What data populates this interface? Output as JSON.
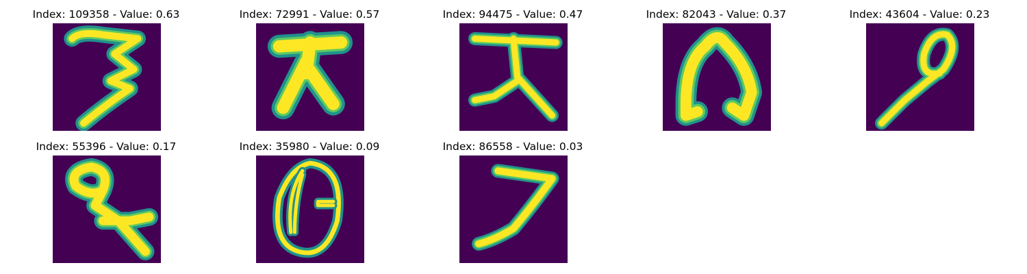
{
  "colors": {
    "background": "#440154",
    "stroke_edge": "#21918c",
    "stroke_mid": "#5ec962",
    "stroke_core": "#fde725"
  },
  "panels": [
    {
      "title": "Index: 109358 - Value: 0.63",
      "glyph_icon": "handwritten-three-glyph"
    },
    {
      "title": "Index: 72991 - Value: 0.57",
      "glyph_icon": "handwritten-da-glyph"
    },
    {
      "title": "Index: 94475 - Value: 0.47",
      "glyph_icon": "handwritten-da-glyph"
    },
    {
      "title": "Index: 82043 - Value: 0.37",
      "glyph_icon": "handwritten-arch-glyph"
    },
    {
      "title": "Index: 43604 - Value: 0.23",
      "glyph_icon": "handwritten-nine-glyph"
    },
    {
      "title": "Index: 55396 - Value: 0.17",
      "glyph_icon": "handwritten-loop-glyph"
    },
    {
      "title": "Index: 35980 - Value: 0.09",
      "glyph_icon": "handwritten-zero-glyph"
    },
    {
      "title": "Index: 86558 - Value: 0.03",
      "glyph_icon": "handwritten-seven-glyph"
    }
  ]
}
